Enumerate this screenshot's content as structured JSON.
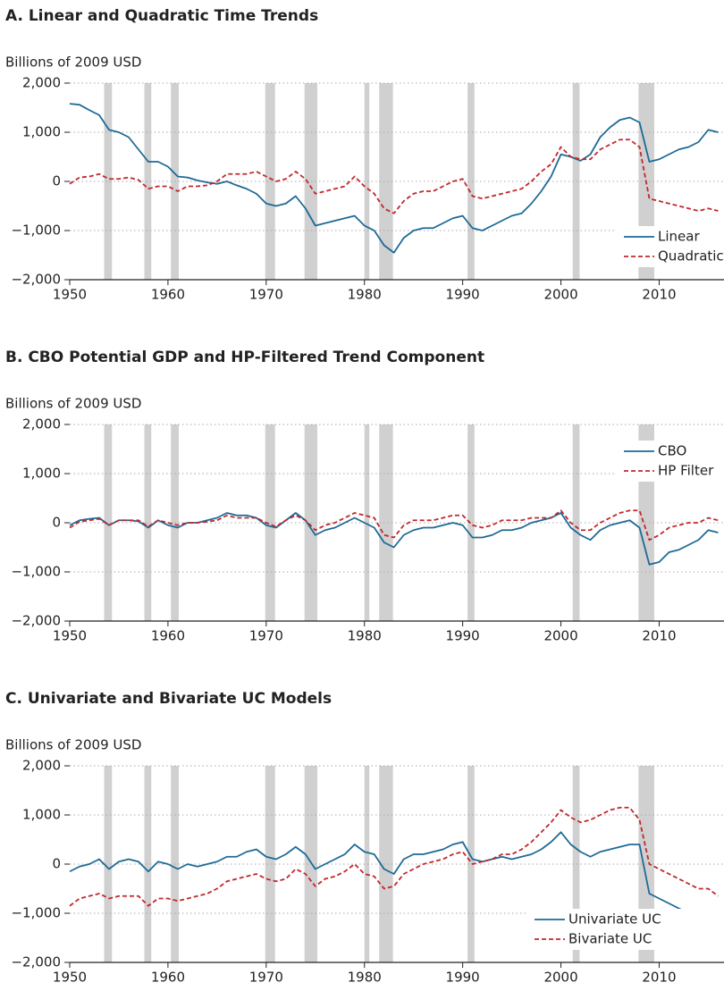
{
  "chart_data": [
    {
      "type": "line",
      "title": "A. Linear and Quadratic Time Trends",
      "y_label": "Billions of 2009 USD",
      "x": [
        1950,
        1951,
        1952,
        1953,
        1954,
        1955,
        1956,
        1957,
        1958,
        1959,
        1960,
        1961,
        1962,
        1963,
        1964,
        1965,
        1966,
        1967,
        1968,
        1969,
        1970,
        1971,
        1972,
        1973,
        1974,
        1975,
        1976,
        1977,
        1978,
        1979,
        1980,
        1981,
        1982,
        1983,
        1984,
        1985,
        1986,
        1987,
        1988,
        1989,
        1990,
        1991,
        1992,
        1993,
        1994,
        1995,
        1996,
        1997,
        1998,
        1999,
        2000,
        2001,
        2002,
        2003,
        2004,
        2005,
        2006,
        2007,
        2008,
        2009,
        2010,
        2011,
        2012,
        2013,
        2014,
        2015,
        2016
      ],
      "series": [
        {
          "name": "Linear",
          "color": "#1d6a96",
          "dash": false,
          "values": [
            1580,
            1560,
            1450,
            1350,
            1050,
            1000,
            900,
            650,
            400,
            400,
            300,
            100,
            80,
            20,
            -20,
            -50,
            0,
            -80,
            -150,
            -250,
            -450,
            -500,
            -450,
            -300,
            -550,
            -900,
            -850,
            -800,
            -750,
            -700,
            -900,
            -1000,
            -1300,
            -1450,
            -1150,
            -1000,
            -950,
            -950,
            -850,
            -750,
            -700,
            -950,
            -1000,
            -900,
            -800,
            -700,
            -650,
            -450,
            -200,
            100,
            550,
            500,
            420,
            550,
            900,
            1100,
            1250,
            1300,
            1200,
            400,
            450,
            550,
            650,
            700,
            800,
            1050,
            1000
          ]
        },
        {
          "name": "Quadratic",
          "color": "#c1272d",
          "dash": true,
          "values": [
            -50,
            80,
            100,
            150,
            50,
            50,
            80,
            30,
            -150,
            -100,
            -100,
            -200,
            -100,
            -100,
            -80,
            0,
            150,
            150,
            150,
            200,
            100,
            0,
            50,
            200,
            50,
            -250,
            -200,
            -150,
            -100,
            100,
            -100,
            -250,
            -550,
            -650,
            -400,
            -250,
            -200,
            -200,
            -100,
            0,
            50,
            -300,
            -350,
            -300,
            -250,
            -200,
            -150,
            0,
            200,
            350,
            700,
            500,
            450,
            450,
            650,
            750,
            850,
            850,
            700,
            -350,
            -400,
            -450,
            -500,
            -550,
            -600,
            -550,
            -600
          ]
        }
      ],
      "recessions": [
        [
          1953.5,
          1954.3
        ],
        [
          1957.6,
          1958.3
        ],
        [
          1960.3,
          1961.1
        ],
        [
          1969.9,
          1970.9
        ],
        [
          1973.9,
          1975.2
        ],
        [
          1980.0,
          1980.5
        ],
        [
          1981.5,
          1982.9
        ],
        [
          1990.5,
          1991.2
        ],
        [
          2001.2,
          2001.9
        ],
        [
          2007.9,
          2009.5
        ]
      ],
      "xlim": [
        1950,
        2016.6
      ],
      "xticks": [
        1950,
        1960,
        1970,
        1980,
        1990,
        2000,
        2010
      ],
      "ylim": [
        -2000,
        2000
      ],
      "yticks": [
        {
          "value": 2000,
          "label": "2,000"
        },
        {
          "value": 1000,
          "label": "1,000"
        },
        0,
        {
          "value": -1000,
          "label": "−1,000"
        },
        {
          "value": -2000,
          "label": "−2,000"
        }
      ],
      "grid": true,
      "legend": "lower right"
    },
    {
      "type": "line",
      "title": "B. CBO Potential GDP and HP-Filtered Trend Component",
      "y_label": "Billions of 2009 USD",
      "x": [
        1950,
        1951,
        1952,
        1953,
        1954,
        1955,
        1956,
        1957,
        1958,
        1959,
        1960,
        1961,
        1962,
        1963,
        1964,
        1965,
        1966,
        1967,
        1968,
        1969,
        1970,
        1971,
        1972,
        1973,
        1974,
        1975,
        1976,
        1977,
        1978,
        1979,
        1980,
        1981,
        1982,
        1983,
        1984,
        1985,
        1986,
        1987,
        1988,
        1989,
        1990,
        1991,
        1992,
        1993,
        1994,
        1995,
        1996,
        1997,
        1998,
        1999,
        2000,
        2001,
        2002,
        2003,
        2004,
        2005,
        2006,
        2007,
        2008,
        2009,
        2010,
        2011,
        2012,
        2013,
        2014,
        2015,
        2016
      ],
      "series": [
        {
          "name": "CBO",
          "color": "#1d6a96",
          "dash": false,
          "values": [
            -50,
            50,
            80,
            100,
            -50,
            50,
            50,
            30,
            -100,
            50,
            -50,
            -100,
            0,
            0,
            50,
            100,
            200,
            150,
            150,
            100,
            -50,
            -100,
            50,
            200,
            50,
            -250,
            -150,
            -100,
            0,
            100,
            0,
            -100,
            -400,
            -500,
            -250,
            -150,
            -100,
            -100,
            -50,
            0,
            -50,
            -300,
            -300,
            -250,
            -150,
            -150,
            -100,
            0,
            50,
            100,
            200,
            -100,
            -250,
            -350,
            -150,
            -50,
            0,
            50,
            -100,
            -850,
            -800,
            -600,
            -550,
            -450,
            -350,
            -150,
            -200
          ]
        },
        {
          "name": "HP Filter",
          "color": "#c1272d",
          "dash": true,
          "values": [
            -100,
            20,
            50,
            80,
            -50,
            50,
            50,
            50,
            -80,
            50,
            0,
            -50,
            0,
            0,
            20,
            50,
            150,
            100,
            100,
            100,
            0,
            -80,
            50,
            150,
            50,
            -150,
            -50,
            0,
            100,
            200,
            150,
            100,
            -250,
            -300,
            -50,
            50,
            50,
            50,
            100,
            150,
            150,
            -50,
            -100,
            -50,
            50,
            50,
            50,
            100,
            100,
            100,
            250,
            0,
            -150,
            -150,
            0,
            100,
            200,
            250,
            250,
            -350,
            -250,
            -100,
            -50,
            0,
            0,
            100,
            50
          ]
        }
      ],
      "recessions": [
        [
          1953.5,
          1954.3
        ],
        [
          1957.6,
          1958.3
        ],
        [
          1960.3,
          1961.1
        ],
        [
          1969.9,
          1970.9
        ],
        [
          1973.9,
          1975.2
        ],
        [
          1980.0,
          1980.5
        ],
        [
          1981.5,
          1982.9
        ],
        [
          1990.5,
          1991.2
        ],
        [
          2001.2,
          2001.9
        ],
        [
          2007.9,
          2009.5
        ]
      ],
      "xlim": [
        1950,
        2016.6
      ],
      "xticks": [
        1950,
        1960,
        1970,
        1980,
        1990,
        2000,
        2010
      ],
      "ylim": [
        -2000,
        2000
      ],
      "yticks": [
        {
          "value": 2000,
          "label": "2,000"
        },
        {
          "value": 1000,
          "label": "1,000"
        },
        0,
        {
          "value": -1000,
          "label": "−1,000"
        },
        {
          "value": -2000,
          "label": "−2,000"
        }
      ],
      "grid": true,
      "legend": "upper right"
    },
    {
      "type": "line",
      "title": "C. Univariate and Bivariate UC Models",
      "y_label": "Billions of 2009 USD",
      "x": [
        1950,
        1951,
        1952,
        1953,
        1954,
        1955,
        1956,
        1957,
        1958,
        1959,
        1960,
        1961,
        1962,
        1963,
        1964,
        1965,
        1966,
        1967,
        1968,
        1969,
        1970,
        1971,
        1972,
        1973,
        1974,
        1975,
        1976,
        1977,
        1978,
        1979,
        1980,
        1981,
        1982,
        1983,
        1984,
        1985,
        1986,
        1987,
        1988,
        1989,
        1990,
        1991,
        1992,
        1993,
        1994,
        1995,
        1996,
        1997,
        1998,
        1999,
        2000,
        2001,
        2002,
        2003,
        2004,
        2005,
        2006,
        2007,
        2008,
        2009,
        2010,
        2011,
        2012,
        2013,
        2014,
        2015,
        2016
      ],
      "series": [
        {
          "name": "Univariate UC",
          "color": "#1d6a96",
          "dash": false,
          "values": [
            -150,
            -50,
            0,
            100,
            -100,
            50,
            100,
            50,
            -150,
            50,
            0,
            -100,
            0,
            -50,
            0,
            50,
            150,
            150,
            250,
            300,
            150,
            100,
            200,
            350,
            200,
            -100,
            0,
            100,
            200,
            400,
            250,
            200,
            -100,
            -200,
            100,
            200,
            200,
            250,
            300,
            400,
            450,
            100,
            50,
            100,
            150,
            100,
            150,
            200,
            300,
            450,
            650,
            400,
            250,
            150,
            250,
            300,
            350,
            400,
            400,
            -600,
            -700,
            -800,
            -900,
            -1000,
            -1300,
            -1250,
            -1400
          ]
        },
        {
          "name": "Bivariate UC",
          "color": "#c1272d",
          "dash": true,
          "values": [
            -850,
            -700,
            -650,
            -600,
            -700,
            -650,
            -650,
            -650,
            -850,
            -700,
            -700,
            -750,
            -700,
            -650,
            -600,
            -500,
            -350,
            -300,
            -250,
            -200,
            -300,
            -350,
            -300,
            -100,
            -200,
            -450,
            -300,
            -250,
            -150,
            0,
            -200,
            -250,
            -500,
            -450,
            -200,
            -100,
            0,
            50,
            100,
            200,
            250,
            0,
            50,
            100,
            200,
            200,
            300,
            450,
            650,
            850,
            1100,
            950,
            850,
            900,
            1000,
            1100,
            1150,
            1150,
            900,
            0,
            -100,
            -200,
            -300,
            -400,
            -500,
            -500,
            -650
          ]
        }
      ],
      "recessions": [
        [
          1953.5,
          1954.3
        ],
        [
          1957.6,
          1958.3
        ],
        [
          1960.3,
          1961.1
        ],
        [
          1969.9,
          1970.9
        ],
        [
          1973.9,
          1975.2
        ],
        [
          1980.0,
          1980.5
        ],
        [
          1981.5,
          1982.9
        ],
        [
          1990.5,
          1991.2
        ],
        [
          2001.2,
          2001.9
        ],
        [
          2007.9,
          2009.5
        ]
      ],
      "xlim": [
        1950,
        2016.6
      ],
      "xticks": [
        1950,
        1960,
        1970,
        1980,
        1990,
        2000,
        2010
      ],
      "ylim": [
        -2000,
        2000
      ],
      "yticks": [
        {
          "value": 2000,
          "label": "2,000"
        },
        {
          "value": 1000,
          "label": "1,000"
        },
        0,
        {
          "value": -1000,
          "label": "−1,000"
        },
        {
          "value": -2000,
          "label": "−2,000"
        }
      ],
      "grid": true,
      "legend": "lower right"
    }
  ]
}
